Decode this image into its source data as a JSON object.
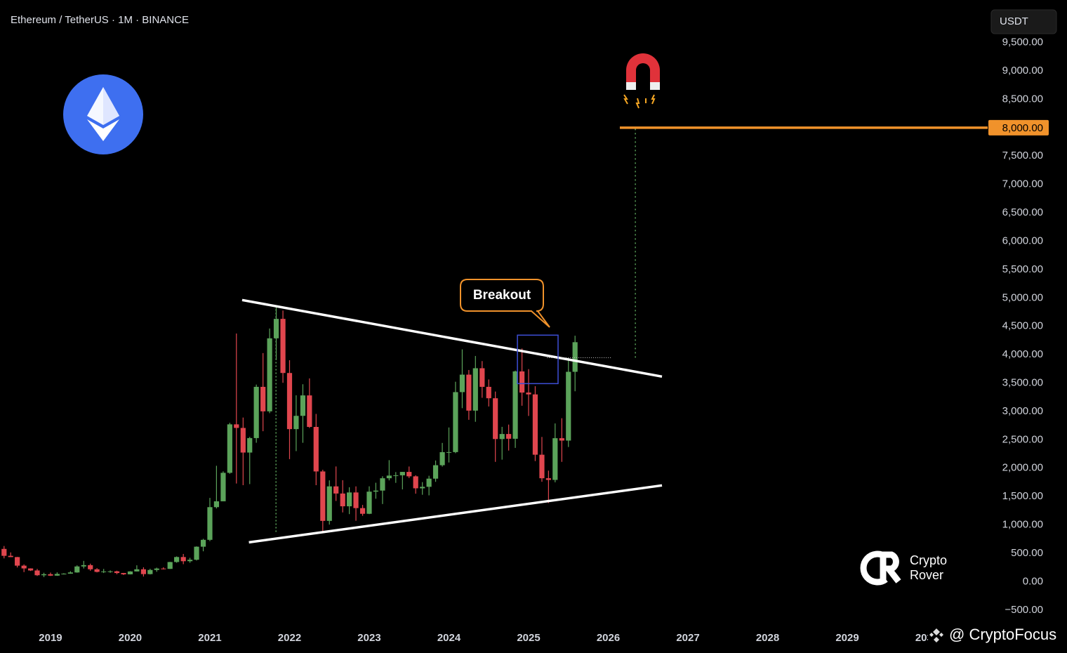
{
  "chart_data": {
    "type": "candlestick",
    "title": "Ethereum / TetherUS · 1M · BINANCE",
    "currency": "USDT",
    "up_color": "#5ba35a",
    "down_color": "#e0464e",
    "xlim": [
      2018.366,
      2030.7
    ],
    "ylim": [
      -750,
      10250
    ],
    "xticks": [
      2019,
      2020,
      2021,
      2022,
      2023,
      2024,
      2025,
      2026,
      2027,
      2028,
      2029,
      2030
    ],
    "yticks": [
      {
        "value": -500,
        "label": "−500.00"
      },
      {
        "value": 0,
        "label": "0.00"
      },
      {
        "value": 500,
        "label": "500.00"
      },
      {
        "value": 1000,
        "label": "1,000.00"
      },
      {
        "value": 1500,
        "label": "1,500.00"
      },
      {
        "value": 2000,
        "label": "2,000.00"
      },
      {
        "value": 2500,
        "label": "2,500.00"
      },
      {
        "value": 3000,
        "label": "3,000.00"
      },
      {
        "value": 3500,
        "label": "3,500.00"
      },
      {
        "value": 4000,
        "label": "4,000.00"
      },
      {
        "value": 4500,
        "label": "4,500.00"
      },
      {
        "value": 5000,
        "label": "5,000.00"
      },
      {
        "value": 5500,
        "label": "5,500.00"
      },
      {
        "value": 6000,
        "label": "6,000.00"
      },
      {
        "value": 6500,
        "label": "6,500.00"
      },
      {
        "value": 7000,
        "label": "7,000.00"
      },
      {
        "value": 7500,
        "label": "7,500.00"
      },
      {
        "value": 8000,
        "label": "8,000.00"
      },
      {
        "value": 8500,
        "label": "8,500.00"
      },
      {
        "value": 9000,
        "label": "9,000.00"
      },
      {
        "value": 9500,
        "label": "9,500.00"
      }
    ],
    "x": [
      2018.417,
      2018.5,
      2018.583,
      2018.667,
      2018.75,
      2018.833,
      2018.917,
      2019,
      2019.083,
      2019.167,
      2019.25,
      2019.333,
      2019.417,
      2019.5,
      2019.583,
      2019.667,
      2019.75,
      2019.833,
      2019.917,
      2020,
      2020.083,
      2020.167,
      2020.25,
      2020.333,
      2020.417,
      2020.5,
      2020.583,
      2020.667,
      2020.75,
      2020.833,
      2020.917,
      2021,
      2021.083,
      2021.167,
      2021.25,
      2021.333,
      2021.417,
      2021.5,
      2021.583,
      2021.667,
      2021.75,
      2021.833,
      2021.917,
      2022,
      2022.083,
      2022.167,
      2022.25,
      2022.333,
      2022.417,
      2022.5,
      2022.583,
      2022.667,
      2022.75,
      2022.833,
      2022.917,
      2023,
      2023.083,
      2023.167,
      2023.25,
      2023.333,
      2023.417,
      2023.5,
      2023.583,
      2023.667,
      2023.75,
      2023.833,
      2023.917,
      2024,
      2024.083,
      2024.167,
      2024.25,
      2024.333,
      2024.417,
      2024.5,
      2024.583,
      2024.667,
      2024.75,
      2024.833,
      2024.917,
      2025,
      2025.083,
      2025.167,
      2025.25,
      2025.333,
      2025.417,
      2025.5,
      2025.583
    ],
    "open": [
      577,
      455,
      433,
      282,
      233,
      197,
      113,
      131,
      106,
      136,
      141,
      162,
      268,
      291,
      218,
      172,
      180,
      182,
      152,
      129,
      180,
      218,
      133,
      206,
      231,
      225,
      346,
      434,
      360,
      386,
      616,
      737,
      1313,
      1416,
      1918,
      2772,
      2709,
      2275,
      2530,
      3433,
      3001,
      4288,
      4631,
      3677,
      2688,
      2922,
      3282,
      2727,
      1942,
      1071,
      1679,
      1553,
      1328,
      1572,
      1296,
      1196,
      1586,
      1605,
      1822,
      1869,
      1874,
      1934,
      1856,
      1645,
      1671,
      1815,
      2052,
      2282,
      2283,
      3340,
      3648,
      3014,
      3761,
      3433,
      3232,
      2513,
      2602,
      2518,
      3705,
      3332,
      3300,
      2237,
      1822,
      1793,
      2528,
      2486,
      3698
    ],
    "high": [
      628,
      515,
      436,
      303,
      235,
      224,
      157,
      160,
      164,
      149,
      184,
      287,
      366,
      317,
      238,
      224,
      198,
      193,
      154,
      185,
      288,
      253,
      227,
      247,
      253,
      349,
      445,
      488,
      420,
      622,
      755,
      1476,
      2042,
      1944,
      2799,
      4372,
      2892,
      2551,
      3473,
      4028,
      4461,
      4868,
      4778,
      3902,
      3284,
      3479,
      3582,
      2956,
      1972,
      1785,
      2030,
      1788,
      1663,
      1679,
      1352,
      1680,
      1743,
      1857,
      2141,
      1931,
      1935,
      2029,
      1875,
      1754,
      1866,
      2135,
      2445,
      2717,
      3523,
      4093,
      3730,
      3977,
      3887,
      3563,
      3350,
      2728,
      2768,
      3720,
      4109,
      3745,
      3444,
      2550,
      1956,
      2788,
      2880,
      3941,
      4334
    ],
    "low": [
      410,
      432,
      250,
      168,
      188,
      100,
      81,
      100,
      102,
      126,
      139,
      157,
      232,
      192,
      163,
      152,
      156,
      131,
      117,
      127,
      179,
      90,
      127,
      174,
      215,
      224,
      333,
      308,
      333,
      373,
      535,
      714,
      1290,
      1423,
      1901,
      1730,
      1700,
      1719,
      2448,
      2651,
      2969,
      3904,
      3504,
      2159,
      2300,
      2447,
      2708,
      1700,
      881,
      1006,
      1422,
      1220,
      1190,
      1073,
      1160,
      1190,
      1461,
      1368,
      1785,
      1741,
      1626,
      1826,
      1550,
      1531,
      1521,
      1759,
      2028,
      2100,
      2264,
      3057,
      2852,
      2817,
      3240,
      3087,
      2111,
      2150,
      2310,
      2357,
      3100,
      2920,
      2125,
      1760,
      1385,
      1751,
      2111,
      2373,
      3355
    ],
    "close": [
      455,
      433,
      282,
      233,
      197,
      113,
      131,
      106,
      136,
      141,
      162,
      268,
      291,
      218,
      172,
      180,
      182,
      152,
      129,
      180,
      218,
      133,
      206,
      231,
      225,
      346,
      434,
      360,
      386,
      616,
      737,
      1313,
      1416,
      1918,
      2772,
      2709,
      2275,
      2530,
      3433,
      3001,
      4288,
      4631,
      3677,
      2688,
      2922,
      3282,
      2727,
      1942,
      1071,
      1679,
      1553,
      1328,
      1572,
      1296,
      1196,
      1586,
      1605,
      1822,
      1869,
      1874,
      1934,
      1856,
      1645,
      1671,
      1815,
      2052,
      2282,
      2283,
      3340,
      3648,
      3014,
      3761,
      3433,
      3232,
      2513,
      2602,
      2518,
      3705,
      3332,
      3300,
      2237,
      1822,
      1793,
      2528,
      2486,
      3698,
      4220
    ],
    "trendlines": [
      {
        "x": [
          2021.405,
          2026.674
        ],
        "y": [
          4963,
          3614
        ]
      },
      {
        "x": [
          2021.49,
          2026.674
        ],
        "y": [
          693,
          1696
        ]
      }
    ],
    "level": {
      "value": 8000,
      "label": "8,000.00",
      "color": "#f0922b",
      "x_start": 2026.145
    },
    "projection": {
      "x": 2026.34,
      "y": [
        3948,
        8000
      ]
    },
    "measure": {
      "x": 2021.83,
      "y": [
        4800,
        850
      ]
    },
    "breakout_line": {
      "x": [
        2025.23,
        2026.04
      ],
      "y": 3948
    },
    "breakout_box": {
      "x": [
        2024.86,
        2025.37
      ],
      "y": [
        3490,
        4344
      ]
    },
    "annotation": "Breakout",
    "logo": [
      "Crypto",
      "Rover"
    ],
    "watermark": "@ CryptoFocus"
  }
}
